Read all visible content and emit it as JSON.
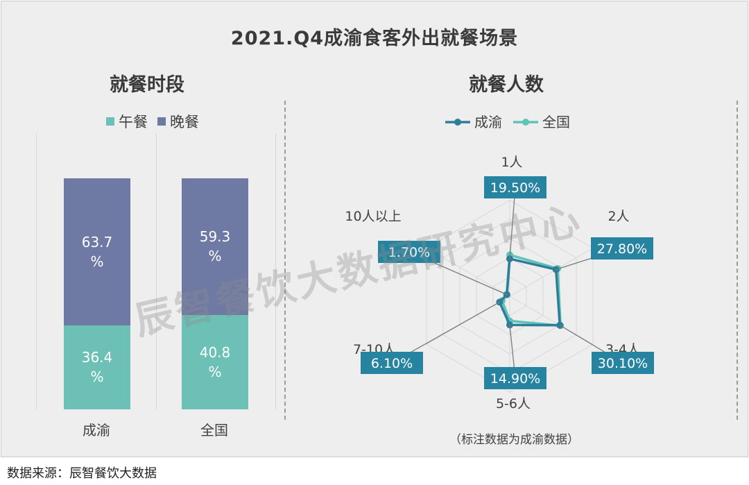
{
  "title": "2021.Q4成渝食客外出就餐场景",
  "watermark": "辰智餐饮大数据研究中心",
  "source": "数据来源：辰智餐饮大数据",
  "note": "（标注数据为成渝数据）",
  "colors": {
    "lunch": "#6cc0b5",
    "dinner": "#6e7aa4",
    "chengyu": "#2e7d9a",
    "national": "#5ec4b8",
    "label_bg": "#2784a0"
  },
  "chart_data": [
    {
      "type": "bar",
      "stacked": true,
      "title": "就餐时段",
      "categories": [
        "成渝",
        "全国"
      ],
      "series": [
        {
          "name": "午餐",
          "values": [
            36.4,
            40.8
          ],
          "labels": [
            "36.4\n%",
            "40.8\n%"
          ]
        },
        {
          "name": "晚餐",
          "values": [
            63.7,
            59.3
          ],
          "labels": [
            "63.7\n%",
            "59.3\n%"
          ]
        }
      ],
      "ylim": [
        0,
        100
      ],
      "legend": "top"
    },
    {
      "type": "radar",
      "title": "就餐人数",
      "axes": [
        "1人",
        "2人",
        "3-4人",
        "5-6人",
        "7-10人",
        "10人以上"
      ],
      "series": [
        {
          "name": "成渝",
          "values": [
            19.5,
            27.8,
            30.1,
            14.9,
            6.1,
            1.7
          ]
        },
        {
          "name": "全国",
          "values": [
            21.5,
            28.8,
            30.5,
            12.8,
            4.6,
            1.9
          ]
        }
      ],
      "data_labels": [
        "19.50%",
        "27.80%",
        "30.10%",
        "14.90%",
        "6.10%",
        "1.70%"
      ],
      "rmax": 50,
      "legend": "top"
    }
  ]
}
